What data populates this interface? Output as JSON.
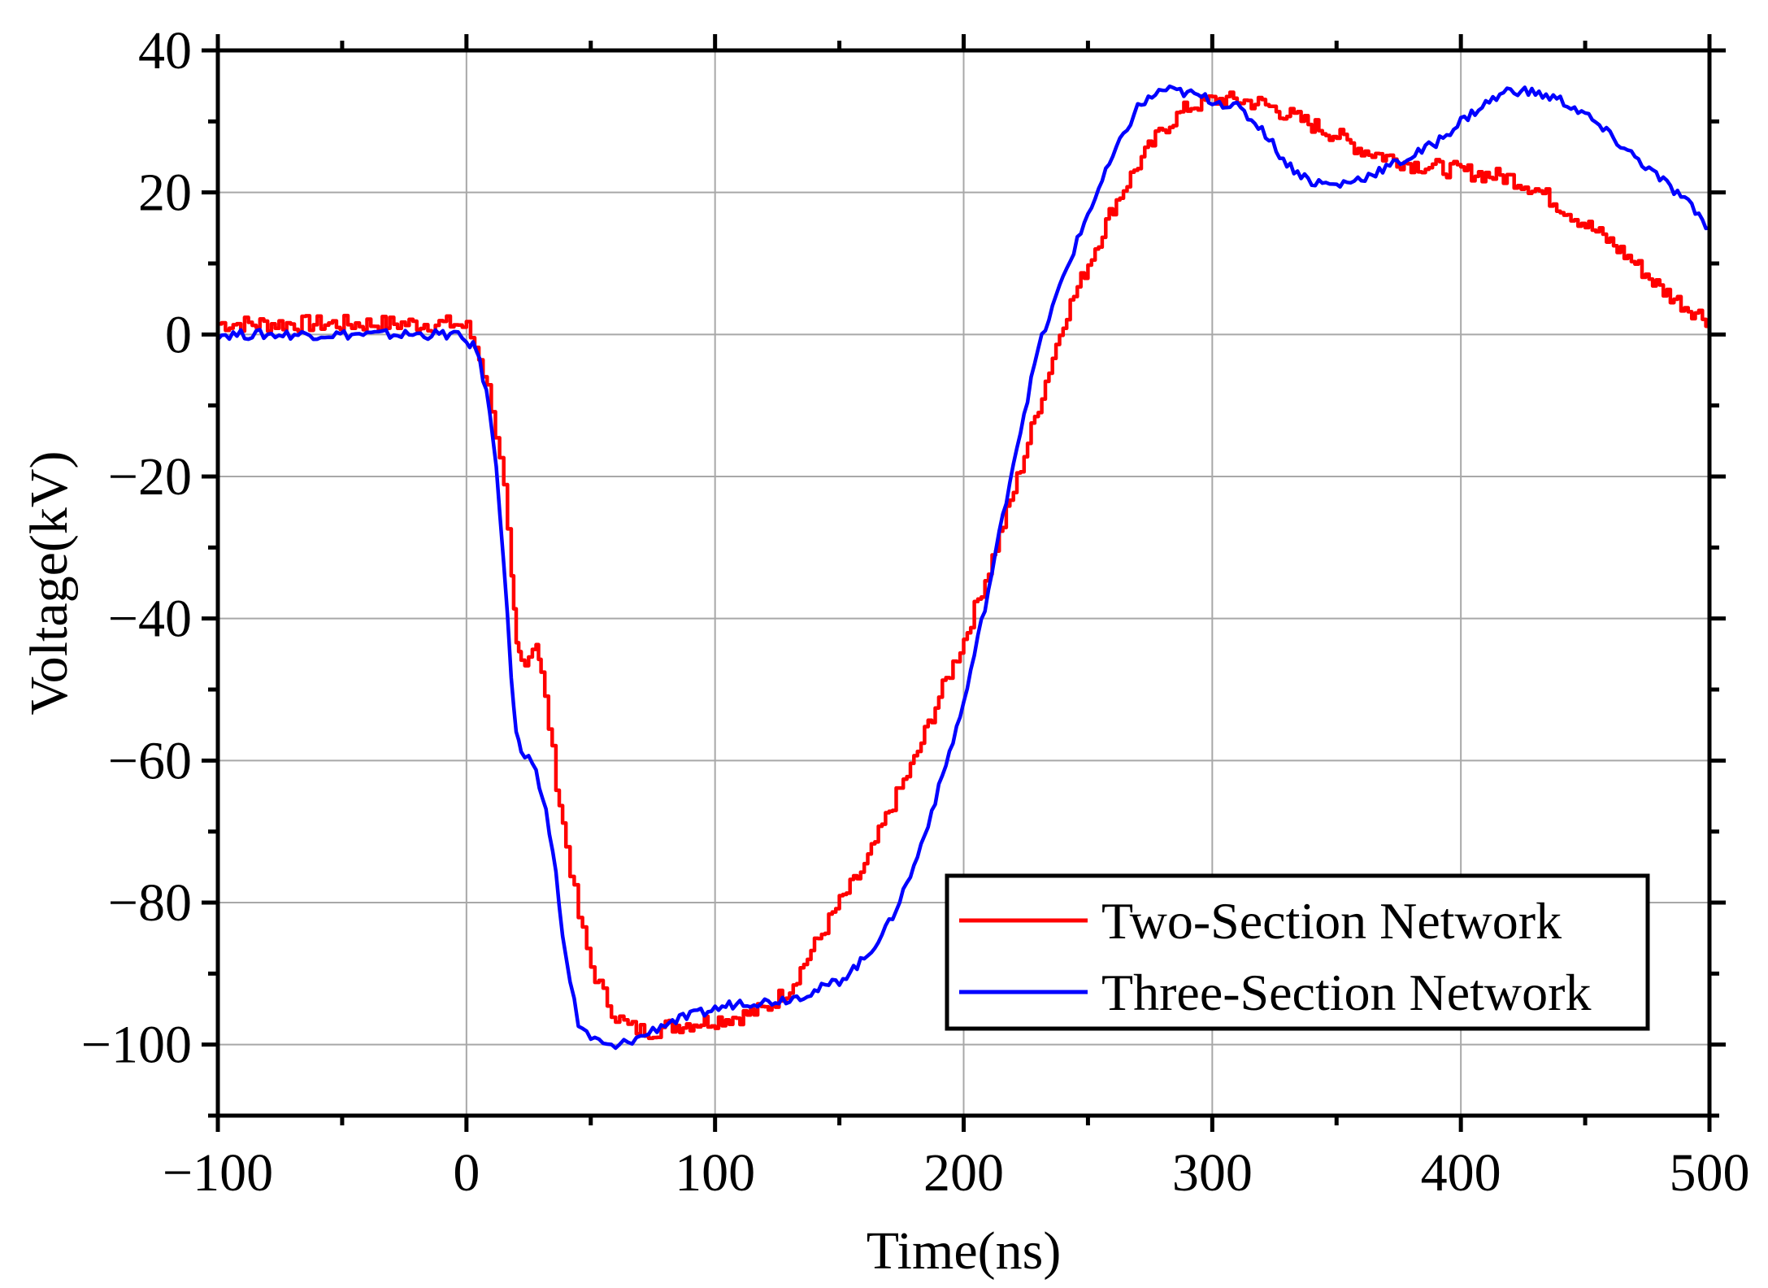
{
  "chart_data": {
    "type": "line",
    "title": "",
    "xlabel": "Time(ns)",
    "ylabel": "Voltage(kV)",
    "xlim": [
      -100,
      500
    ],
    "ylim": [
      -110,
      40
    ],
    "xticks": [
      -100,
      0,
      100,
      200,
      300,
      400,
      500
    ],
    "yticks": [
      -100,
      -80,
      -60,
      -40,
      -20,
      0,
      20,
      40
    ],
    "xtick_labels": [
      "−100",
      "0",
      "100",
      "200",
      "300",
      "400",
      "500"
    ],
    "ytick_labels": [
      "−100",
      "−80",
      "−60",
      "−40",
      "−20",
      "0",
      "20",
      "40"
    ],
    "grid": true,
    "legend_position": "bottom-right",
    "series": [
      {
        "name": "Two-Section Network",
        "color": "#ff0000",
        "x": [
          -100,
          -80,
          -60,
          -40,
          -20,
          -5,
          0,
          5,
          10,
          15,
          18,
          20,
          22,
          25,
          28,
          30,
          33,
          36,
          40,
          45,
          50,
          55,
          60,
          65,
          70,
          75,
          80,
          90,
          100,
          110,
          120,
          130,
          140,
          150,
          160,
          170,
          180,
          190,
          200,
          210,
          220,
          230,
          240,
          250,
          260,
          270,
          280,
          290,
          300,
          310,
          320,
          330,
          340,
          350,
          360,
          370,
          380,
          390,
          400,
          410,
          420,
          430,
          440,
          450,
          460,
          470,
          480,
          490,
          500
        ],
        "values": [
          1.5,
          1.5,
          1.5,
          1.5,
          1.5,
          1.5,
          1.0,
          -3,
          -10,
          -22,
          -35,
          -44,
          -46,
          -45,
          -43,
          -48,
          -55,
          -63,
          -72,
          -82,
          -89,
          -93,
          -96,
          -97.5,
          -98,
          -98,
          -97.5,
          -97,
          -96.5,
          -96,
          -95,
          -92,
          -86,
          -80,
          -75,
          -67,
          -60,
          -51,
          -43,
          -33,
          -22,
          -10,
          2,
          10,
          18,
          24,
          29,
          32,
          33,
          33,
          32.5,
          31,
          29.5,
          28,
          26,
          25,
          24,
          23.5,
          23,
          22.5,
          22,
          20.5,
          18,
          15.5,
          13,
          10,
          6.5,
          4,
          2
        ]
      },
      {
        "name": "Three-Section Network",
        "color": "#0000ff",
        "x": [
          -100,
          -80,
          -60,
          -40,
          -20,
          -5,
          0,
          4,
          8,
          12,
          15,
          18,
          20,
          22,
          25,
          28,
          32,
          36,
          40,
          45,
          50,
          55,
          60,
          65,
          70,
          75,
          80,
          90,
          100,
          110,
          120,
          130,
          140,
          150,
          160,
          170,
          180,
          190,
          200,
          210,
          220,
          230,
          240,
          250,
          260,
          270,
          280,
          290,
          300,
          310,
          320,
          330,
          340,
          350,
          360,
          370,
          380,
          390,
          400,
          410,
          420,
          430,
          440,
          450,
          460,
          470,
          480,
          490,
          500
        ],
        "values": [
          0,
          0,
          0,
          0,
          0,
          0,
          -1,
          -2,
          -8,
          -18,
          -32,
          -48,
          -56,
          -59,
          -60,
          -62,
          -67,
          -76,
          -88,
          -97,
          -99,
          -100,
          -100.5,
          -99.5,
          -99,
          -98,
          -97,
          -96,
          -95,
          -94,
          -94,
          -93.5,
          -92.5,
          -91,
          -88,
          -83,
          -75,
          -64,
          -52,
          -36,
          -18,
          -2,
          8,
          17,
          25,
          32,
          34.5,
          34,
          33,
          32,
          29,
          24,
          21.5,
          21,
          22,
          23.5,
          25,
          27,
          30,
          32.5,
          34.5,
          34,
          33,
          31,
          28,
          25,
          22,
          19,
          15
        ]
      }
    ]
  }
}
